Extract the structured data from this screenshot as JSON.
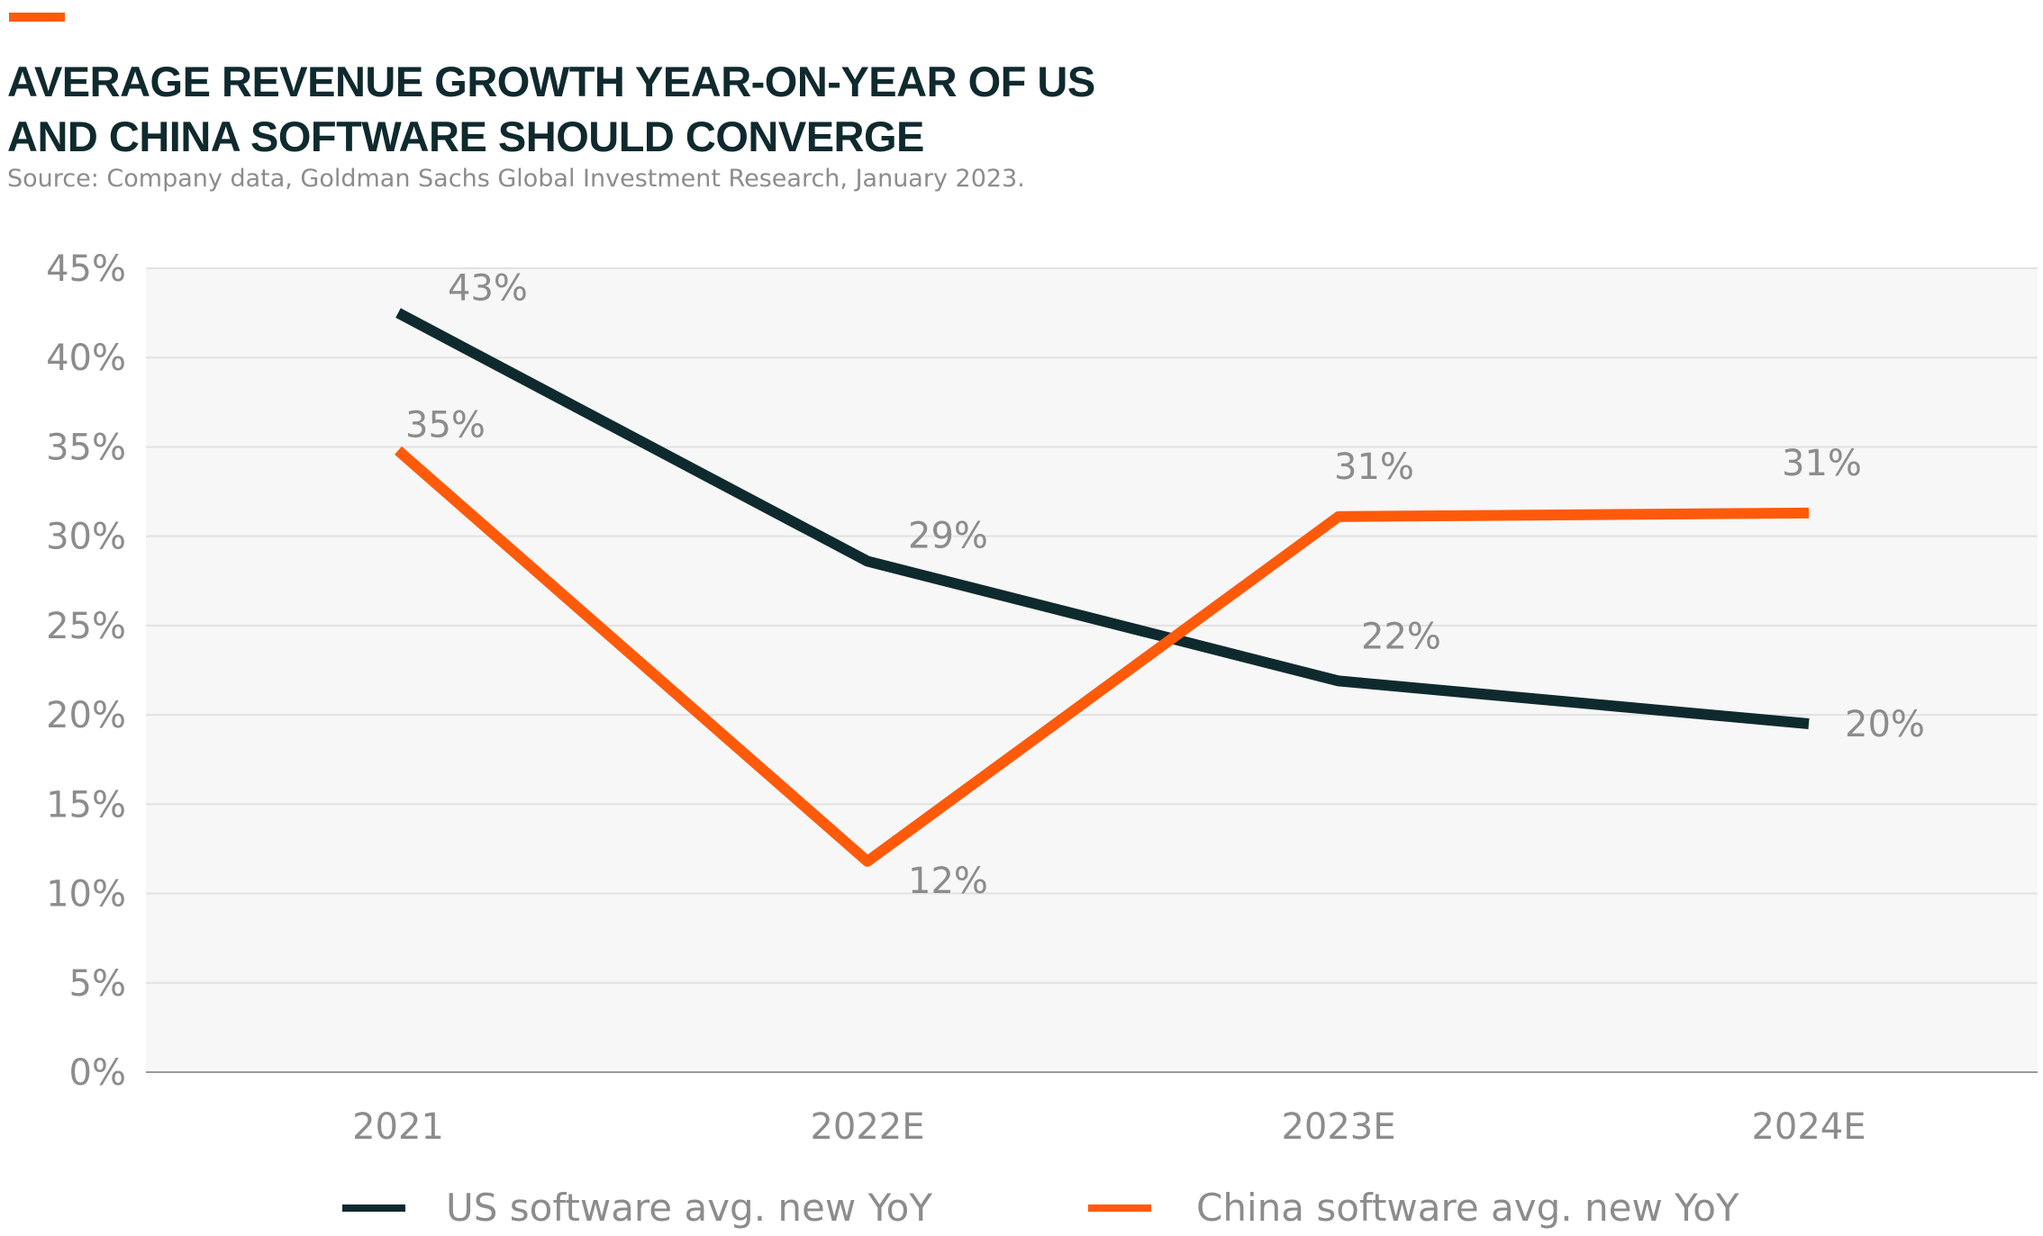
{
  "title_lines": [
    "AVERAGE REVENUE GROWTH YEAR-ON-YEAR OF US",
    "AND CHINA SOFTWARE SHOULD CONVERGE"
  ],
  "source": "Source: Company data, Goldman Sachs Global Investment Research, January 2023.",
  "colors": {
    "accent": "#ff5a0a",
    "us_series": "#0f2a2e",
    "china_series": "#ff5a0a",
    "plot_background": "#f7f7f7",
    "grid": "#e2e2e2",
    "text_muted": "#8c8c8c",
    "title": "#0f2a2e"
  },
  "chart_data": {
    "type": "line",
    "categories": [
      "2021",
      "2022E",
      "2023E",
      "2024E"
    ],
    "ylim": [
      0,
      45
    ],
    "y_ticks": [
      0,
      5,
      10,
      15,
      20,
      25,
      30,
      35,
      40,
      45
    ],
    "y_tick_labels": [
      "0%",
      "5%",
      "10%",
      "15%",
      "20%",
      "25%",
      "30%",
      "35%",
      "40%",
      "45%"
    ],
    "grid": true,
    "legend_placement": "bottom",
    "series": [
      {
        "name": "US software avg. new YoY",
        "values": [
          42.5,
          28.6,
          21.9,
          19.5
        ],
        "labels": [
          "43%",
          "29%",
          "22%",
          "20%"
        ],
        "color": "#0f2a2e"
      },
      {
        "name": "China software avg. new YoY",
        "values": [
          34.8,
          11.8,
          31.1,
          31.3
        ],
        "labels": [
          "35%",
          "12%",
          "31%",
          "31%"
        ],
        "color": "#ff5a0a"
      }
    ]
  }
}
